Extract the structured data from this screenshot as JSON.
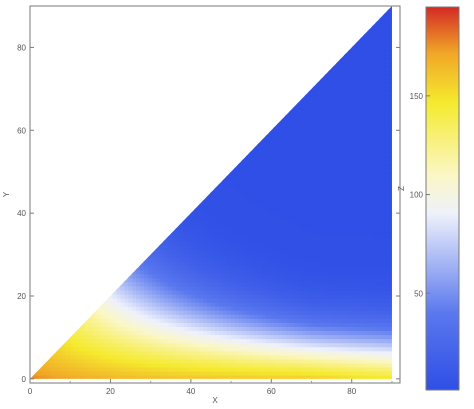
{
  "chart_data": {
    "type": "heatmap",
    "title": "",
    "xlabel": "X",
    "ylabel": "Y",
    "zlabel": "Z",
    "xlim": [
      0,
      92
    ],
    "ylim": [
      -1,
      90
    ],
    "zlim": [
      1,
      195
    ],
    "x_ticks": [
      0,
      20,
      40,
      60,
      80
    ],
    "y_ticks": [
      0,
      20,
      40,
      60,
      80
    ],
    "z_ticks": [
      50,
      100,
      150
    ],
    "domain": "triangle: 0 <= Y <= X, 0 <= X <= 90",
    "grid": false,
    "colormap": [
      "#2f4fe6",
      "#5a78ee",
      "#eef1fb",
      "#fbf7c6",
      "#f5ea2e",
      "#f1a628",
      "#d32a24"
    ],
    "colormap_stops": [
      0.0,
      0.2,
      0.46,
      0.56,
      0.75,
      0.88,
      1.0
    ],
    "samples": [
      {
        "x": 2,
        "y": 1,
        "z": 190
      },
      {
        "x": 90,
        "y": 1,
        "z": 160
      },
      {
        "x": 20,
        "y": 10,
        "z": 150
      },
      {
        "x": 30,
        "y": 30,
        "z": 100
      },
      {
        "x": 45,
        "y": 20,
        "z": 100
      },
      {
        "x": 90,
        "y": 9,
        "z": 100
      },
      {
        "x": 50,
        "y": 40,
        "z": 20
      },
      {
        "x": 90,
        "y": 88,
        "z": 5
      }
    ]
  }
}
